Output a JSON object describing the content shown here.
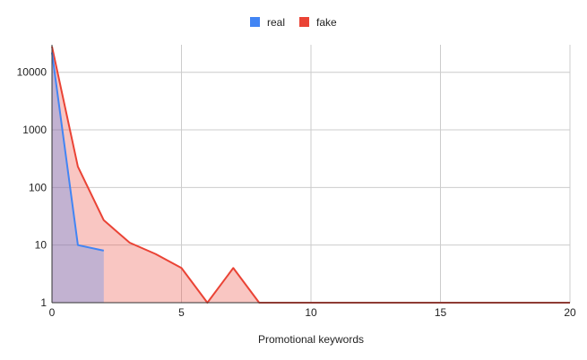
{
  "chart_data": {
    "type": "area",
    "title": "",
    "xlabel": "Promotional keywords",
    "ylabel": "",
    "xlim": [
      0,
      20
    ],
    "ylim": [
      1,
      30000
    ],
    "yscale": "log",
    "x_ticks": [
      "0",
      "5",
      "10",
      "15",
      "20"
    ],
    "y_ticks": [
      "1",
      "10",
      "100",
      "1000",
      "10000"
    ],
    "grid": true,
    "legend_position": "top-center",
    "series": [
      {
        "name": "real",
        "color": "#4285f4",
        "x": [
          0,
          1,
          2
        ],
        "y": [
          22000,
          10,
          8
        ]
      },
      {
        "name": "fake",
        "color": "#ea4335",
        "x": [
          0,
          1,
          2,
          3,
          4,
          5,
          6,
          7,
          8,
          9,
          10,
          11,
          12,
          13,
          14,
          15,
          16,
          17,
          18,
          19,
          20
        ],
        "y": [
          28000,
          230,
          27,
          11,
          7,
          4,
          1,
          4,
          1,
          1,
          1,
          1,
          1,
          1,
          1,
          1,
          1,
          1,
          1,
          1,
          1
        ]
      }
    ]
  }
}
